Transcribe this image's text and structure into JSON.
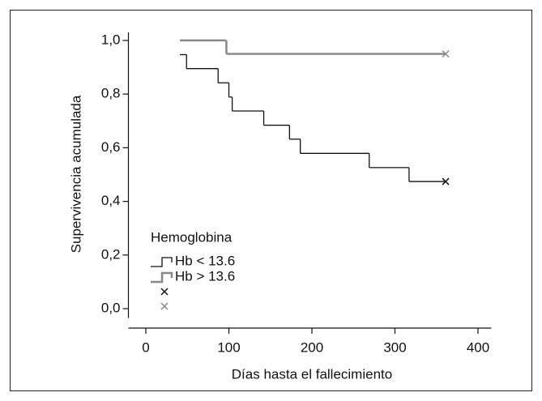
{
  "chart_data": {
    "type": "step",
    "x_label": "Días hasta el fallecimiento",
    "y_label": "Supervivencia acumulada",
    "legend_title": "Hemoglobina",
    "xlim": [
      -21,
      416
    ],
    "xticks": [
      0,
      100,
      200,
      300,
      400
    ],
    "ylim": [
      -0.035,
      1.03
    ],
    "yticks": [
      {
        "value": 0,
        "label": "0,0"
      },
      {
        "value": 0.2,
        "label": "0,2"
      },
      {
        "value": 0.4,
        "label": "0,4"
      },
      {
        "value": 0.6,
        "label": "0,6"
      },
      {
        "value": 0.8,
        "label": "0,8"
      },
      {
        "value": 1,
        "label": "1,0"
      }
    ],
    "series": [
      {
        "name": "Hb < 13.6",
        "color": "#111111",
        "x": [
          41,
          49,
          87,
          100,
          104,
          142,
          173,
          186,
          269,
          317,
          361
        ],
        "values": [
          0.947,
          0.895,
          0.842,
          0.789,
          0.737,
          0.684,
          0.632,
          0.579,
          0.526,
          0.474,
          0.474
        ]
      },
      {
        "name": "Hb > 13.6",
        "color": "#888888",
        "x": [
          41,
          97,
          361
        ],
        "values": [
          1.0,
          0.95,
          0.95
        ]
      }
    ]
  }
}
